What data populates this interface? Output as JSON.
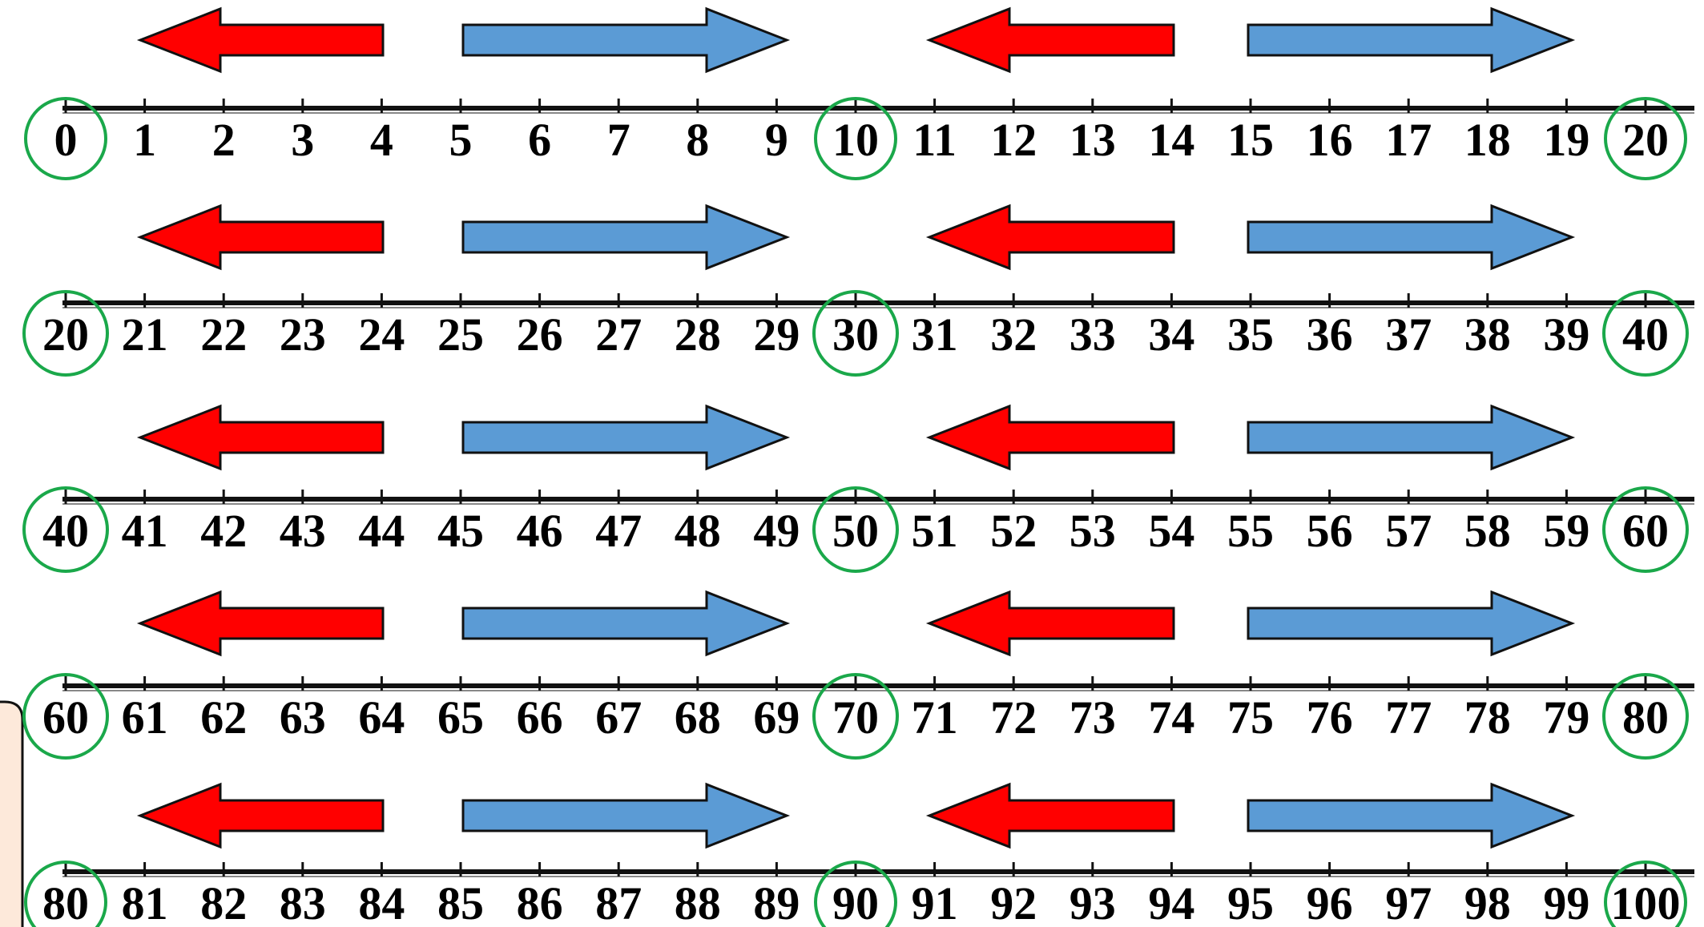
{
  "colors": {
    "left_arrow": "#ff0000",
    "right_arrow": "#5b9bd5",
    "circle": "#1aa84a",
    "side_box": "#fde9da"
  },
  "number_lines": [
    {
      "labels": [
        "0",
        "1",
        "2",
        "3",
        "4",
        "5",
        "6",
        "7",
        "8",
        "9",
        "10",
        "11",
        "12",
        "13",
        "14",
        "15",
        "16",
        "17",
        "18",
        "19",
        "20"
      ],
      "circled": [
        "0",
        "10",
        "20"
      ]
    },
    {
      "labels": [
        "20",
        "21",
        "22",
        "23",
        "24",
        "25",
        "26",
        "27",
        "28",
        "29",
        "30",
        "31",
        "32",
        "33",
        "34",
        "35",
        "36",
        "37",
        "38",
        "39",
        "40"
      ],
      "circled": [
        "20",
        "30",
        "40"
      ]
    },
    {
      "labels": [
        "40",
        "41",
        "42",
        "43",
        "44",
        "45",
        "46",
        "47",
        "48",
        "49",
        "50",
        "51",
        "52",
        "53",
        "54",
        "55",
        "56",
        "57",
        "58",
        "59",
        "60"
      ],
      "circled": [
        "40",
        "50",
        "60"
      ]
    },
    {
      "labels": [
        "60",
        "61",
        "62",
        "63",
        "64",
        "65",
        "66",
        "67",
        "68",
        "69",
        "70",
        "71",
        "72",
        "73",
        "74",
        "75",
        "76",
        "77",
        "78",
        "79",
        "80"
      ],
      "circled": [
        "60",
        "70",
        "80"
      ]
    },
    {
      "labels": [
        "80",
        "81",
        "82",
        "83",
        "84",
        "85",
        "86",
        "87",
        "88",
        "89",
        "90",
        "91",
        "92",
        "93",
        "94",
        "95",
        "96",
        "97",
        "98",
        "99",
        "100"
      ],
      "circled": [
        "80",
        "90",
        "100"
      ]
    }
  ],
  "arrow_pattern": [
    "left",
    "right",
    "left",
    "right"
  ]
}
